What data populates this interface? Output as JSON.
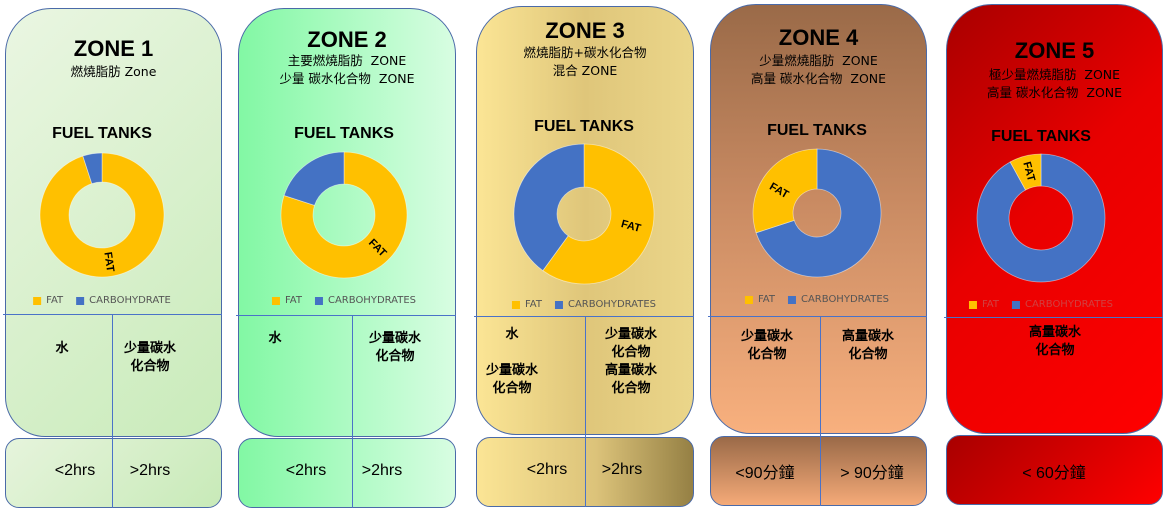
{
  "colors": {
    "fat": "#FFC000",
    "carbohydrate": "#4472C4"
  },
  "zones": [
    {
      "title": "ZONE 1",
      "subtitle": [
        "燃燒脂肪 Zone"
      ],
      "chart_title": "FUEL TANKS",
      "legend": [
        "FAT",
        "CARBOHYDRATE"
      ],
      "chart": {
        "type": "pie",
        "slices": [
          {
            "name": "FAT",
            "value": 95
          },
          {
            "name": "CARBOHYDRATE",
            "value": 5
          }
        ],
        "slice_label": "FAT"
      },
      "sources": [
        "水",
        "少量碳水\n化合物"
      ],
      "durations": [
        "<2hrs",
        ">2hrs"
      ]
    },
    {
      "title": "ZONE 2",
      "subtitle": [
        "主要燃燒脂肪  ZONE",
        "少量 碳水化合物  ZONE"
      ],
      "chart_title": "FUEL TANKS",
      "legend": [
        "FAT",
        "CARBOHYDRATES"
      ],
      "chart": {
        "type": "pie",
        "slices": [
          {
            "name": "FAT",
            "value": 80
          },
          {
            "name": "CARBOHYDRATES",
            "value": 20
          }
        ],
        "slice_label": "FAT"
      },
      "sources": [
        "水",
        "少量碳水\n化合物"
      ],
      "durations": [
        "<2hrs",
        ">2hrs"
      ]
    },
    {
      "title": "ZONE 3",
      "subtitle": [
        "燃燒脂肪+碳水化合物",
        "混合 ZONE"
      ],
      "chart_title": "FUEL TANKS",
      "legend": [
        "FAT",
        "CARBOHYDRATES"
      ],
      "chart": {
        "type": "pie",
        "slices": [
          {
            "name": "FAT",
            "value": 60
          },
          {
            "name": "CARBOHYDRATES",
            "value": 40
          }
        ],
        "slice_label": "FAT"
      },
      "sources": [
        "水\n\n少量碳水\n化合物",
        "少量碳水\n化合物\n高量碳水\n化合物"
      ],
      "durations": [
        "<2hrs",
        ">2hrs"
      ]
    },
    {
      "title": "ZONE 4",
      "subtitle": [
        "少量燃燒脂肪  ZONE",
        "高量 碳水化合物  ZONE"
      ],
      "chart_title": "FUEL TANKS",
      "legend": [
        "FAT",
        "CARBOHYDRATES"
      ],
      "chart": {
        "type": "pie",
        "slices": [
          {
            "name": "CARBOHYDRATES",
            "value": 70
          },
          {
            "name": "FAT",
            "value": 30
          }
        ],
        "slice_label": "FAT"
      },
      "sources": [
        "少量碳水\n化合物",
        "高量碳水\n化合物"
      ],
      "durations": [
        "<90分鐘",
        "> 90分鐘"
      ]
    },
    {
      "title": "ZONE 5",
      "subtitle": [
        "極少量燃燒脂肪  ZONE",
        "高量 碳水化合物  ZONE"
      ],
      "chart_title": "FUEL TANKS",
      "legend": [
        "FAT",
        "CARBOHYDRATES"
      ],
      "chart": {
        "type": "pie",
        "slices": [
          {
            "name": "CARBOHYDRATES",
            "value": 92
          },
          {
            "name": "FAT",
            "value": 8
          }
        ],
        "slice_label": "FAT"
      },
      "sources": [
        "高量碳水\n化合物"
      ],
      "durations": [
        "< 60分鐘"
      ]
    }
  ]
}
